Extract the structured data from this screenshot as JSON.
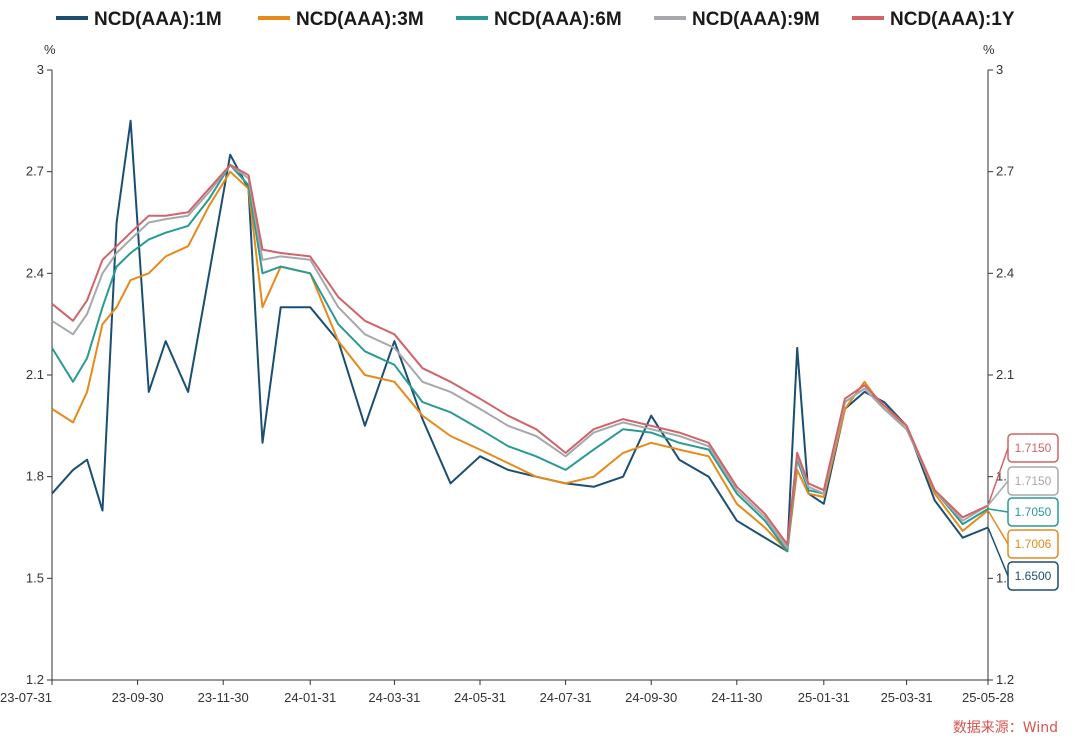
{
  "chart_data": {
    "type": "line",
    "title": "",
    "xlabel": "",
    "ylabel": "%",
    "ylabel_right": "%",
    "ylim": [
      1.2,
      3.0
    ],
    "yticks": [
      "1.2",
      "1.5",
      "1.8",
      "2.1",
      "2.4",
      "2.7",
      "3"
    ],
    "xlim": [
      "2023-07-31",
      "2025-05-28"
    ],
    "xticks": [
      {
        "date": "2023-07-31",
        "label": "23-07-31"
      },
      {
        "date": "2023-09-30",
        "label": "23-09-30"
      },
      {
        "date": "2023-11-30",
        "label": "23-11-30"
      },
      {
        "date": "2024-01-31",
        "label": "24-01-31"
      },
      {
        "date": "2024-03-31",
        "label": "24-03-31"
      },
      {
        "date": "2024-05-31",
        "label": "24-05-31"
      },
      {
        "date": "2024-07-31",
        "label": "24-07-31"
      },
      {
        "date": "2024-09-30",
        "label": "24-09-30"
      },
      {
        "date": "2024-11-30",
        "label": "24-11-30"
      },
      {
        "date": "2025-01-31",
        "label": "25-01-31"
      },
      {
        "date": "2025-03-31",
        "label": "25-03-31"
      },
      {
        "date": "2025-05-28",
        "label": "25-05-28"
      }
    ],
    "grid": false,
    "legend_position": "top",
    "series": [
      {
        "name": "NCD(AAA):1M",
        "color": "#1b4f72",
        "last_label": "1.6500",
        "x": [
          "2023-07-31",
          "2023-08-15",
          "2023-08-25",
          "2023-09-05",
          "2023-09-15",
          "2023-09-25",
          "2023-10-08",
          "2023-10-20",
          "2023-11-05",
          "2023-11-20",
          "2023-12-05",
          "2023-12-18",
          "2023-12-28",
          "2024-01-10",
          "2024-01-31",
          "2024-02-20",
          "2024-03-10",
          "2024-03-31",
          "2024-04-20",
          "2024-05-10",
          "2024-05-31",
          "2024-06-20",
          "2024-07-10",
          "2024-07-31",
          "2024-08-20",
          "2024-09-10",
          "2024-09-30",
          "2024-10-20",
          "2024-11-10",
          "2024-11-30",
          "2024-12-20",
          "2025-01-05",
          "2025-01-12",
          "2025-01-20",
          "2025-01-31",
          "2025-02-15",
          "2025-03-01",
          "2025-03-15",
          "2025-03-31",
          "2025-04-20",
          "2025-05-10",
          "2025-05-28"
        ],
        "values": [
          1.75,
          1.82,
          1.85,
          1.7,
          2.55,
          2.85,
          2.05,
          2.2,
          2.05,
          2.4,
          2.75,
          2.65,
          1.9,
          2.3,
          2.3,
          2.2,
          1.95,
          2.2,
          1.97,
          1.78,
          1.86,
          1.82,
          1.8,
          1.78,
          1.77,
          1.8,
          1.98,
          1.85,
          1.8,
          1.67,
          1.62,
          1.58,
          2.18,
          1.75,
          1.72,
          2.0,
          2.05,
          2.02,
          1.95,
          1.73,
          1.62,
          1.65
        ]
      },
      {
        "name": "NCD(AAA):3M",
        "color": "#e68a1a",
        "last_label": "1.7006",
        "x": [
          "2023-07-31",
          "2023-08-15",
          "2023-08-25",
          "2023-09-05",
          "2023-09-15",
          "2023-09-25",
          "2023-10-08",
          "2023-10-20",
          "2023-11-05",
          "2023-11-20",
          "2023-12-05",
          "2023-12-18",
          "2023-12-28",
          "2024-01-10",
          "2024-01-31",
          "2024-02-20",
          "2024-03-10",
          "2024-03-31",
          "2024-04-20",
          "2024-05-10",
          "2024-05-31",
          "2024-06-20",
          "2024-07-10",
          "2024-07-31",
          "2024-08-20",
          "2024-09-10",
          "2024-09-30",
          "2024-10-20",
          "2024-11-10",
          "2024-11-30",
          "2024-12-20",
          "2025-01-05",
          "2025-01-12",
          "2025-01-20",
          "2025-01-31",
          "2025-02-15",
          "2025-03-01",
          "2025-03-15",
          "2025-03-31",
          "2025-04-20",
          "2025-05-10",
          "2025-05-28"
        ],
        "values": [
          2.0,
          1.96,
          2.05,
          2.25,
          2.3,
          2.38,
          2.4,
          2.45,
          2.48,
          2.6,
          2.7,
          2.65,
          2.3,
          2.42,
          2.4,
          2.2,
          2.1,
          2.08,
          1.98,
          1.92,
          1.88,
          1.84,
          1.8,
          1.78,
          1.8,
          1.87,
          1.9,
          1.88,
          1.86,
          1.72,
          1.65,
          1.58,
          1.82,
          1.75,
          1.74,
          2.0,
          2.08,
          2.0,
          1.95,
          1.75,
          1.64,
          1.7006
        ]
      },
      {
        "name": "NCD(AAA):6M",
        "color": "#2a9a94",
        "last_label": "1.7050",
        "x": [
          "2023-07-31",
          "2023-08-15",
          "2023-08-25",
          "2023-09-05",
          "2023-09-15",
          "2023-09-25",
          "2023-10-08",
          "2023-10-20",
          "2023-11-05",
          "2023-11-20",
          "2023-12-05",
          "2023-12-18",
          "2023-12-28",
          "2024-01-10",
          "2024-01-31",
          "2024-02-20",
          "2024-03-10",
          "2024-03-31",
          "2024-04-20",
          "2024-05-10",
          "2024-05-31",
          "2024-06-20",
          "2024-07-10",
          "2024-07-31",
          "2024-08-20",
          "2024-09-10",
          "2024-09-30",
          "2024-10-20",
          "2024-11-10",
          "2024-11-30",
          "2024-12-20",
          "2025-01-05",
          "2025-01-12",
          "2025-01-20",
          "2025-01-31",
          "2025-02-15",
          "2025-03-01",
          "2025-03-15",
          "2025-03-31",
          "2025-04-20",
          "2025-05-10",
          "2025-05-28"
        ],
        "values": [
          2.18,
          2.08,
          2.15,
          2.3,
          2.42,
          2.46,
          2.5,
          2.52,
          2.54,
          2.62,
          2.72,
          2.66,
          2.4,
          2.42,
          2.4,
          2.25,
          2.17,
          2.13,
          2.02,
          1.99,
          1.94,
          1.89,
          1.86,
          1.82,
          1.88,
          1.94,
          1.93,
          1.9,
          1.88,
          1.75,
          1.67,
          1.58,
          1.85,
          1.76,
          1.75,
          2.02,
          2.06,
          2.0,
          1.94,
          1.76,
          1.66,
          1.705
        ]
      },
      {
        "name": "NCD(AAA):9M",
        "color": "#a6a8ab",
        "last_label": "1.7150",
        "x": [
          "2023-07-31",
          "2023-08-15",
          "2023-08-25",
          "2023-09-05",
          "2023-09-15",
          "2023-09-25",
          "2023-10-08",
          "2023-10-20",
          "2023-11-05",
          "2023-11-20",
          "2023-12-05",
          "2023-12-18",
          "2023-12-28",
          "2024-01-10",
          "2024-01-31",
          "2024-02-20",
          "2024-03-10",
          "2024-03-31",
          "2024-04-20",
          "2024-05-10",
          "2024-05-31",
          "2024-06-20",
          "2024-07-10",
          "2024-07-31",
          "2024-08-20",
          "2024-09-10",
          "2024-09-30",
          "2024-10-20",
          "2024-11-10",
          "2024-11-30",
          "2024-12-20",
          "2025-01-05",
          "2025-01-12",
          "2025-01-20",
          "2025-01-31",
          "2025-02-15",
          "2025-03-01",
          "2025-03-15",
          "2025-03-31",
          "2025-04-20",
          "2025-05-10",
          "2025-05-28"
        ],
        "values": [
          2.26,
          2.22,
          2.28,
          2.4,
          2.46,
          2.5,
          2.55,
          2.56,
          2.57,
          2.64,
          2.72,
          2.68,
          2.44,
          2.45,
          2.44,
          2.3,
          2.22,
          2.18,
          2.08,
          2.05,
          2.0,
          1.95,
          1.92,
          1.86,
          1.93,
          1.96,
          1.94,
          1.92,
          1.89,
          1.76,
          1.68,
          1.59,
          1.86,
          1.77,
          1.75,
          2.02,
          2.06,
          2.0,
          1.94,
          1.76,
          1.67,
          1.715
        ]
      },
      {
        "name": "NCD(AAA):1Y",
        "color": "#d06468",
        "last_label": "1.7150",
        "x": [
          "2023-07-31",
          "2023-08-15",
          "2023-08-25",
          "2023-09-05",
          "2023-09-15",
          "2023-09-25",
          "2023-10-08",
          "2023-10-20",
          "2023-11-05",
          "2023-11-20",
          "2023-12-05",
          "2023-12-18",
          "2023-12-28",
          "2024-01-10",
          "2024-01-31",
          "2024-02-20",
          "2024-03-10",
          "2024-03-31",
          "2024-04-20",
          "2024-05-10",
          "2024-05-31",
          "2024-06-20",
          "2024-07-10",
          "2024-07-31",
          "2024-08-20",
          "2024-09-10",
          "2024-09-30",
          "2024-10-20",
          "2024-11-10",
          "2024-11-30",
          "2024-12-20",
          "2025-01-05",
          "2025-01-12",
          "2025-01-20",
          "2025-01-31",
          "2025-02-15",
          "2025-03-01",
          "2025-03-15",
          "2025-03-31",
          "2025-04-20",
          "2025-05-10",
          "2025-05-28"
        ],
        "values": [
          2.31,
          2.26,
          2.32,
          2.44,
          2.48,
          2.52,
          2.57,
          2.57,
          2.58,
          2.65,
          2.72,
          2.69,
          2.47,
          2.46,
          2.45,
          2.33,
          2.26,
          2.22,
          2.12,
          2.08,
          2.03,
          1.98,
          1.94,
          1.87,
          1.94,
          1.97,
          1.95,
          1.93,
          1.9,
          1.77,
          1.69,
          1.6,
          1.87,
          1.78,
          1.76,
          2.03,
          2.07,
          2.01,
          1.95,
          1.76,
          1.68,
          1.715
        ]
      }
    ],
    "source": "数据来源：Wind"
  }
}
